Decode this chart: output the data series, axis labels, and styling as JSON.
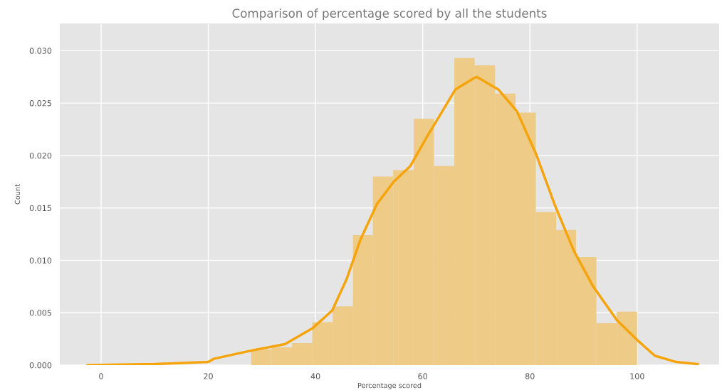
{
  "chart_data": {
    "type": "histogram",
    "title": "Comparison of percentage scored by all the students",
    "xlabel": "Percentage scored",
    "ylabel": "Count",
    "bins": [
      28.0,
      31.8,
      35.6,
      39.4,
      43.2,
      47.0,
      50.7,
      54.5,
      58.3,
      62.1,
      65.9,
      69.7,
      73.5,
      77.3,
      81.1,
      84.9,
      88.6,
      92.4,
      96.2,
      100.0
    ],
    "series": [
      {
        "color": "#eecb86",
        "values": [
          0.0015,
          0.0017,
          0.0021,
          0.0041,
          0.0056,
          0.0124,
          0.018,
          0.0186,
          0.0235,
          0.019,
          0.0293,
          0.0286,
          0.0259,
          0.0241,
          0.0146,
          0.0129,
          0.0103,
          0.004,
          0.0051
        ]
      },
      {
        "type": "line",
        "color": "#f5a40c",
        "x": [
          -2.5,
          10,
          20,
          21,
          28.1,
          34.3,
          39.4,
          43.1,
          45.8,
          48.4,
          51.5,
          54.6,
          57.7,
          60.8,
          63.4,
          66.1,
          69.6,
          70.1,
          74.1,
          77.6,
          81.1,
          84.7,
          88.2,
          91.8,
          96.2,
          100,
          103.3,
          107.3,
          111.3
        ],
        "values": [
          0.0,
          0.0001,
          0.0003,
          0.0006,
          0.0014,
          0.002,
          0.0035,
          0.0052,
          0.0082,
          0.012,
          0.0154,
          0.0175,
          0.019,
          0.0218,
          0.024,
          0.0263,
          0.0274,
          0.0275,
          0.0263,
          0.0242,
          0.0202,
          0.0152,
          0.0109,
          0.0075,
          0.0043,
          0.0024,
          0.0009,
          0.0003,
          0.0001
        ]
      }
    ],
    "xlim": [
      -7.7,
      115.3
    ],
    "ylim": [
      0,
      0.0326
    ],
    "xticks": [
      0,
      20,
      40,
      60,
      80,
      100
    ],
    "yticks": [
      {
        "value": 0,
        "label": "0.000"
      },
      {
        "value": 0.005,
        "label": "0.005"
      },
      {
        "value": 0.01,
        "label": "0.010"
      },
      {
        "value": 0.015,
        "label": "0.015"
      },
      {
        "value": 0.02,
        "label": "0.020"
      },
      {
        "value": 0.025,
        "label": "0.025"
      },
      {
        "value": 0.03,
        "label": "0.030"
      }
    ],
    "grid": true
  }
}
